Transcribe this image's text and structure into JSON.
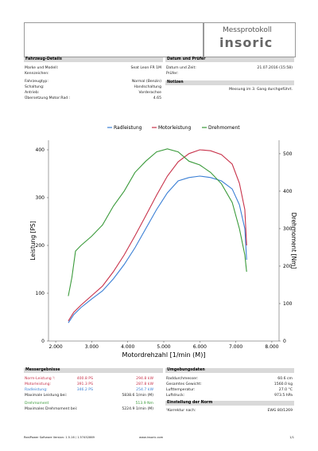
{
  "header": {
    "title": "Messprotokoll",
    "logo": "insoric"
  },
  "vehicle": {
    "title": "Fahrzeug-Details",
    "rows": [
      [
        "Marke und Modell:",
        "Seat Leon FR 1M"
      ],
      [
        "Kennzeichen:"
      ],
      [
        "Fahrzeugtyp:",
        "Normal (Benzin)"
      ],
      [
        "Schaltung:",
        "Handschaltung"
      ],
      [
        "Antrieb:",
        "Vorderachse"
      ],
      [
        "Übersetzung Motor:Rad :",
        "4.65"
      ]
    ]
  },
  "date": {
    "title": "Datum und Prüfer",
    "rows": [
      [
        "Datum und Zeit:",
        "21.07.2016 (15:58)"
      ],
      [
        "Prüfer:"
      ]
    ]
  },
  "notes": {
    "title": "Notizen",
    "text": "Messung im 3. Gang durchgeführt."
  },
  "chart_data": {
    "type": "line",
    "xlabel": "Motordrehzahl [1/min (M)]",
    "ylabel": "Leistung [PS]",
    "y2label": "Drehmoment [Nm]",
    "legend": "top",
    "xlim": [
      1800,
      8200
    ],
    "xticks": [
      {
        "value": 2000,
        "label": "2.000"
      },
      {
        "value": 3000,
        "label": "3.000"
      },
      {
        "value": 4000,
        "label": "4.000"
      },
      {
        "value": 5000,
        "label": "5.000"
      },
      {
        "value": 6000,
        "label": "6.000"
      },
      {
        "value": 7000,
        "label": "7.000"
      },
      {
        "value": 8000,
        "label": "8.000"
      }
    ],
    "ylim": [
      0,
      420
    ],
    "yticks": [
      0,
      100,
      200,
      300,
      400
    ],
    "y2lim": [
      0,
      536
    ],
    "y2ticks": [
      0,
      100,
      200,
      300,
      400,
      500
    ],
    "series": [
      {
        "name": "Radleistung",
        "color": "#3a7fd5",
        "x": [
          2350,
          2500,
          2700,
          3000,
          3300,
          3600,
          3900,
          4200,
          4500,
          4800,
          5100,
          5400,
          5700,
          6000,
          6300,
          6600,
          6900,
          7100,
          7250,
          7300
        ],
        "values": [
          38,
          55,
          70,
          88,
          105,
          130,
          160,
          195,
          235,
          275,
          310,
          335,
          342,
          345,
          342,
          335,
          318,
          285,
          235,
          170
        ]
      },
      {
        "name": "Motorleistung",
        "color": "#c8324a",
        "x": [
          2350,
          2500,
          2700,
          3000,
          3300,
          3600,
          3900,
          4200,
          4500,
          4800,
          5100,
          5400,
          5700,
          6000,
          6300,
          6600,
          6900,
          7100,
          7250,
          7300
        ],
        "values": [
          42,
          60,
          75,
          95,
          115,
          145,
          180,
          220,
          262,
          305,
          345,
          375,
          392,
          400,
          398,
          390,
          370,
          330,
          275,
          200
        ]
      },
      {
        "name": "Drehmoment",
        "color": "#3a9a3a",
        "axis": "y2",
        "x": [
          2350,
          2450,
          2550,
          2700,
          3000,
          3300,
          3600,
          3900,
          4200,
          4500,
          4800,
          5100,
          5400,
          5700,
          6000,
          6300,
          6600,
          6900,
          7100,
          7250,
          7300
        ],
        "values": [
          120,
          170,
          240,
          255,
          280,
          310,
          360,
          400,
          450,
          480,
          505,
          513,
          505,
          480,
          470,
          450,
          420,
          370,
          300,
          230,
          185
        ]
      }
    ]
  },
  "results": {
    "title": "Messergebnisse",
    "rows": [
      [
        "Norm-Leistung ¹:",
        "400.8 PS",
        "294.8 kW"
      ],
      [
        "Motorleistung:",
        "391.3 PS",
        "287.8 kW"
      ],
      [
        "Radleistung:",
        "346.2 PS",
        "254.7 kW"
      ],
      [
        "Maximale Leistung bei:",
        "5838.6 1/min (M)"
      ],
      [
        "Drehmoment",
        "513.9 Nm"
      ],
      [
        "Maximales Drehmoment bei:",
        "5224.9 1/min (M)"
      ]
    ]
  },
  "environment": {
    "title": "Umgebungsdaten",
    "rows": [
      [
        "Raddurchmesser:",
        "60.6 cm"
      ],
      [
        "Gesamtes Gewicht:",
        "1560.0 kg"
      ],
      [
        "Lufttemperatur:",
        "27.0 °C"
      ],
      [
        "Luftdruck:",
        "973.5 hPa"
      ]
    ]
  },
  "norm": {
    "title": "Einstellung der Norm",
    "rows": [
      [
        "¹Korrektur nach:",
        "EWG 80/1269"
      ]
    ]
  },
  "footer": {
    "left": "RealPower Software Version: 1.5.16 / 1.57452869",
    "center": "www.insoric.com",
    "right": "1/1"
  }
}
